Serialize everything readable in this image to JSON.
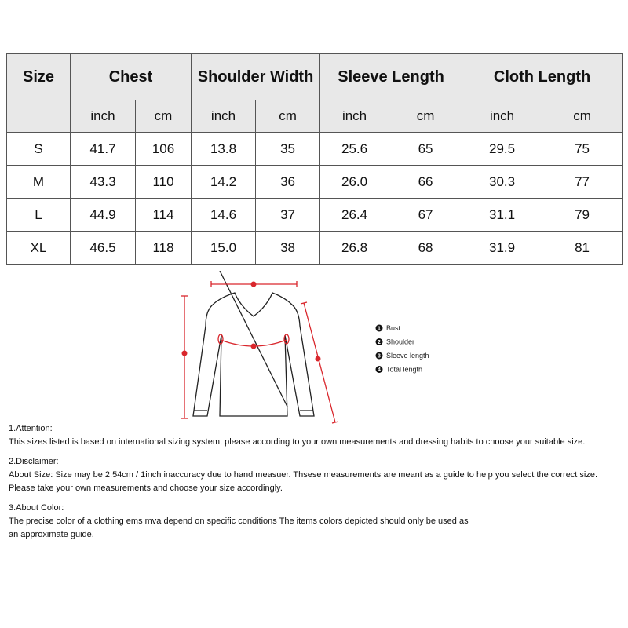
{
  "table": {
    "headers": [
      "Size",
      "Chest",
      "Shoulder Width",
      "Sleeve Length",
      "Cloth Length"
    ],
    "units": [
      "inch",
      "cm",
      "inch",
      "cm",
      "inch",
      "cm",
      "inch",
      "cm"
    ],
    "rows": [
      [
        "S",
        "41.7",
        "106",
        "13.8",
        "35",
        "25.6",
        "65",
        "29.5",
        "75"
      ],
      [
        "M",
        "43.3",
        "110",
        "14.2",
        "36",
        "26.0",
        "66",
        "30.3",
        "77"
      ],
      [
        "L",
        "44.9",
        "114",
        "14.6",
        "37",
        "26.4",
        "67",
        "31.1",
        "79"
      ],
      [
        "XL",
        "46.5",
        "118",
        "15.0",
        "38",
        "26.8",
        "68",
        "31.9",
        "81"
      ]
    ]
  },
  "diagram": {
    "legend": [
      "Bust",
      "Shoulder",
      "Sleeve length",
      "Total length"
    ],
    "numbers": [
      "1",
      "2",
      "3",
      "4"
    ],
    "measure_color": "#d9262c"
  },
  "notes": [
    {
      "title": "1.Attention:",
      "lines": [
        "This sizes listed is based on international sizing system, please according to your own measurements and dressing habits to choose your suitable size."
      ]
    },
    {
      "title": "2.Disclaimer:",
      "lines": [
        "About Size: Size may be 2.54cm / 1inch inaccuracy due to hand measuer. Thsese measurements are meant as a guide to help you select the correct size.",
        "Please take your own measurements and choose your size accordingly."
      ]
    },
    {
      "title": "3.About Color:",
      "lines": [
        "The precise color of a clothing ems mva depend on specific conditions The items colors depicted should only be used as",
        "an approximate guide."
      ]
    }
  ]
}
